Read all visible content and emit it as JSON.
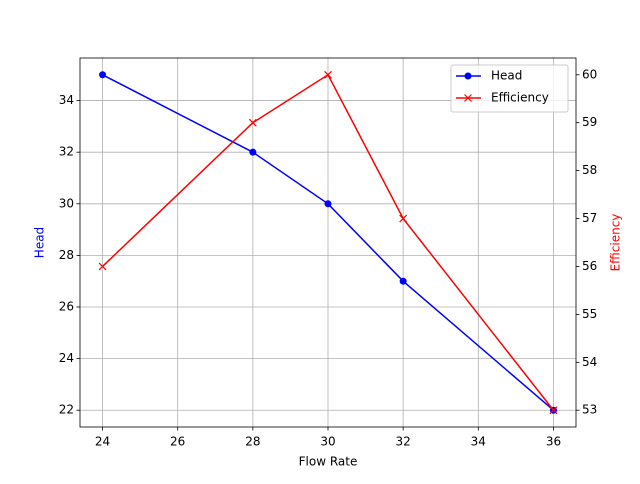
{
  "chart_data": {
    "type": "line",
    "title": null,
    "x_label": "Flow Rate",
    "y_label": "Head",
    "y2_label": "Efficiency",
    "y_label_color": "blue",
    "y2_label_color": "red",
    "x": [
      24,
      28,
      30,
      32,
      36
    ],
    "series": [
      {
        "name": "Head",
        "color": "blue",
        "marker": "circle",
        "values": [
          35,
          32,
          30,
          27,
          22
        ]
      },
      {
        "name": "Efficiency",
        "color": "red",
        "marker": "x",
        "axis": "y2",
        "values": [
          56,
          59,
          60,
          57,
          53
        ]
      }
    ],
    "xlim": [
      23.4,
      36.6
    ],
    "xticks": [
      24,
      26,
      28,
      30,
      32,
      34,
      36
    ],
    "ylim": [
      21.35,
      35.65
    ],
    "yticks": [
      22,
      24,
      26,
      28,
      30,
      32,
      34
    ],
    "y2lim": [
      52.65,
      60.35
    ],
    "y2ticks": [
      53,
      54,
      55,
      56,
      57,
      58,
      59,
      60
    ],
    "grid": true,
    "legend": "upper-right"
  }
}
